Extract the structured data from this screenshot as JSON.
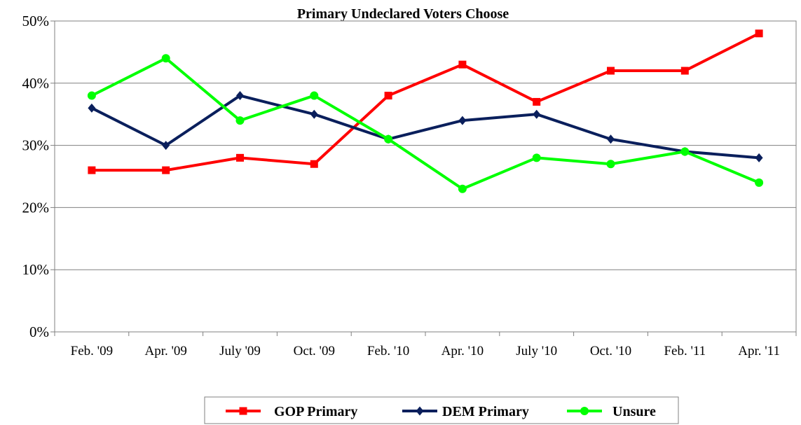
{
  "chart_data": {
    "type": "line",
    "title": "Primary Undeclared Voters Choose",
    "xlabel": "",
    "ylabel": "",
    "categories": [
      "Feb. '09",
      "Apr. '09",
      "July '09",
      "Oct. '09",
      "Feb. '10",
      "Apr. '10",
      "July '10",
      "Oct. '10",
      "Feb. '11",
      "Apr. '11"
    ],
    "ylim": [
      0,
      50
    ],
    "yticks": [
      "0%",
      "10%",
      "20%",
      "30%",
      "40%",
      "50%"
    ],
    "grid": true,
    "legend_position": "bottom",
    "series": [
      {
        "name": "GOP Primary",
        "color": "#ff0000",
        "marker": "square",
        "values": [
          26,
          26,
          28,
          27,
          38,
          43,
          37,
          42,
          42,
          48
        ]
      },
      {
        "name": "DEM Primary",
        "color": "#0a1f5c",
        "marker": "diamond",
        "values": [
          36,
          30,
          38,
          35,
          31,
          34,
          35,
          31,
          29,
          28
        ]
      },
      {
        "name": "Unsure",
        "color": "#00ff00",
        "marker": "circle",
        "values": [
          38,
          44,
          34,
          38,
          31,
          23,
          28,
          27,
          29,
          24
        ]
      }
    ]
  }
}
